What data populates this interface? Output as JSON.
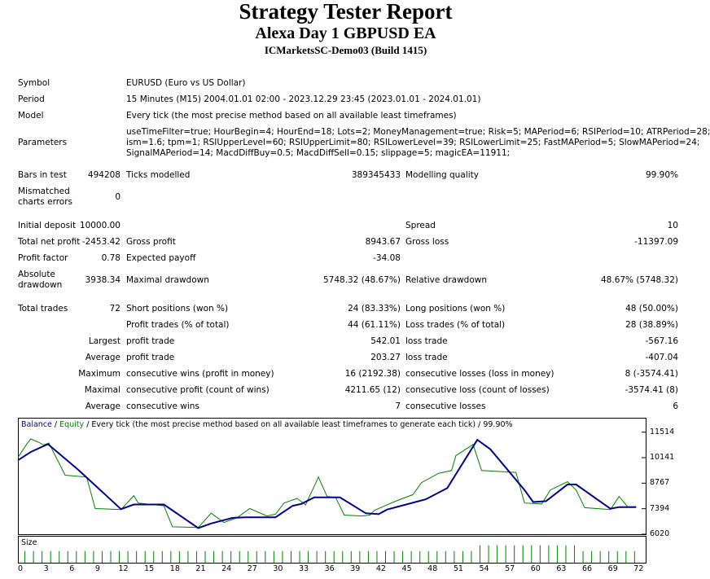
{
  "header": {
    "title": "Strategy Tester Report",
    "subtitle": "Alexa Day 1 GBPUSD EA",
    "server": "ICMarketsSC-Demo03 (Build 1415)"
  },
  "info": {
    "symbol_label": "Symbol",
    "symbol_value": "EURUSD (Euro vs US Dollar)",
    "period_label": "Period",
    "period_value": "15 Minutes (M15) 2004.01.01 02:00 - 2023.12.29 23:45 (2023.01.01 - 2024.01.01)",
    "model_label": "Model",
    "model_value": "Every tick (the most precise method based on all available least timeframes)",
    "parameters_label": "Parameters",
    "parameters_lines": [
      "useTimeFilter=true; HourBegin=4; HourEnd=18; Lots=2; MoneyManagement=true; Risk=5; MAPeriod=6; RSIPeriod=10; ATRPeriod=28;",
      "ism=1.6; tpm=1; RSIUpperLevel=60; RSIUpperLimit=80; RSILowerLevel=39; RSILowerLimit=25; FastMAPeriod=5; SlowMAPeriod=24;",
      "SignalMAPeriod=14; MacdDiffBuy=0.5; MacdDiffSell=0.15; slippage=5; magicEA=11911;"
    ]
  },
  "stats": {
    "bars_label": "Bars in test",
    "bars_value": "494208",
    "ticks_label": "Ticks modelled",
    "ticks_value": "389345433",
    "quality_label": "Modelling quality",
    "quality_value": "99.90%",
    "mismatch_label_1": "Mismatched",
    "mismatch_label_2": "charts errors",
    "mismatch_value": "0",
    "deposit_label": "Initial deposit",
    "deposit_value": "10000.00",
    "spread_label": "Spread",
    "spread_value": "10",
    "netprofit_label": "Total net profit",
    "netprofit_value": "-2453.42",
    "grossprofit_label": "Gross profit",
    "grossprofit_value": "8943.67",
    "grossloss_label": "Gross loss",
    "grossloss_value": "-11397.09",
    "pf_label": "Profit factor",
    "pf_value": "0.78",
    "payoff_label": "Expected payoff",
    "payoff_value": "-34.08",
    "absdd_label_1": "Absolute",
    "absdd_label_2": "drawdown",
    "absdd_value": "3938.34",
    "maxdd_label": "Maximal drawdown",
    "maxdd_value": "5748.32 (48.67%)",
    "reldd_label": "Relative drawdown",
    "reldd_value": "48.67% (5748.32)",
    "trades_label": "Total trades",
    "trades_value": "72",
    "short_label": "Short positions (won %)",
    "short_value": "24 (83.33%)",
    "long_label": "Long positions (won %)",
    "long_value": "48 (50.00%)",
    "profittrades_label": "Profit trades (% of total)",
    "profittrades_value": "44 (61.11%)",
    "losstrades_label": "Loss trades (% of total)",
    "losstrades_value": "28 (38.89%)",
    "largest_label": "Largest",
    "largest_profit_label": "profit trade",
    "largest_profit_value": "542.01",
    "largest_loss_label": "loss trade",
    "largest_loss_value": "-567.16",
    "average_label": "Average",
    "average_profit_label": "profit trade",
    "average_profit_value": "203.27",
    "average_loss_label": "loss trade",
    "average_loss_value": "-407.04",
    "maximum_label": "Maximum",
    "max_wins_label": "consecutive wins (profit in money)",
    "max_wins_value": "16 (2192.38)",
    "max_losses_label": "consecutive losses (loss in money)",
    "max_losses_value": "8 (-3574.41)",
    "maximal_label": "Maximal",
    "maximal_profit_label": "consecutive profit (count of wins)",
    "maximal_profit_value": "4211.65 (12)",
    "maximal_loss_label": "consecutive loss (count of losses)",
    "maximal_loss_value": "-3574.41 (8)",
    "average2_label": "Average",
    "avg_wins_label": "consecutive wins",
    "avg_wins_value": "7",
    "avg_losses_label": "consecutive losses",
    "avg_losses_value": "6"
  },
  "chart_data": {
    "type": "line",
    "legend_balance": "Balance",
    "legend_sep": " / ",
    "legend_equity": "Equity",
    "legend_rest": " / Every tick (the most precise method based on all available least timeframes to generate each tick) / 99.90%",
    "yticks": [
      11514,
      10141,
      8767,
      7394,
      6020
    ],
    "ylim": [
      6020,
      12290
    ],
    "xticks": [
      0,
      3,
      6,
      9,
      12,
      15,
      18,
      21,
      24,
      27,
      30,
      33,
      36,
      39,
      42,
      45,
      48,
      51,
      54,
      57,
      60,
      63,
      66,
      69,
      72
    ],
    "xlim": [
      0,
      73.2
    ],
    "colors": {
      "balance": "#00008b",
      "equity": "#008000",
      "size": "#008000"
    },
    "series": [
      {
        "name": "Balance",
        "points": [
          [
            0,
            10000
          ],
          [
            1.5,
            10450
          ],
          [
            3.5,
            10870
          ],
          [
            7,
            9500
          ],
          [
            12,
            7370
          ],
          [
            13.5,
            7620
          ],
          [
            17,
            7620
          ],
          [
            21,
            6350
          ],
          [
            22.5,
            6600
          ],
          [
            25,
            6900
          ],
          [
            26.5,
            6930
          ],
          [
            30,
            6930
          ],
          [
            32,
            7550
          ],
          [
            33,
            7650
          ],
          [
            34.5,
            8000
          ],
          [
            37.5,
            8000
          ],
          [
            40.5,
            7150
          ],
          [
            42,
            7100
          ],
          [
            43,
            7350
          ],
          [
            47.5,
            7900
          ],
          [
            50,
            8500
          ],
          [
            53.5,
            11100
          ],
          [
            55,
            10600
          ],
          [
            59,
            8400
          ],
          [
            60,
            7750
          ],
          [
            61.5,
            7800
          ],
          [
            64,
            8700
          ],
          [
            65,
            8700
          ],
          [
            69,
            7394
          ],
          [
            70,
            7480
          ],
          [
            72,
            7480
          ]
        ]
      },
      {
        "name": "Equity",
        "points": [
          [
            0,
            10150
          ],
          [
            1,
            10850
          ],
          [
            1.5,
            11150
          ],
          [
            2.5,
            10950
          ],
          [
            3,
            10820
          ],
          [
            3.6,
            10930
          ],
          [
            5.5,
            9200
          ],
          [
            8,
            9100
          ],
          [
            9,
            7400
          ],
          [
            12,
            7350
          ],
          [
            13.5,
            8100
          ],
          [
            14,
            7700
          ],
          [
            17,
            7550
          ],
          [
            18,
            6420
          ],
          [
            21,
            6380
          ],
          [
            22.5,
            7150
          ],
          [
            24,
            6650
          ],
          [
            25.5,
            6900
          ],
          [
            27,
            7400
          ],
          [
            29,
            7000
          ],
          [
            30,
            7100
          ],
          [
            31,
            7700
          ],
          [
            32.5,
            7950
          ],
          [
            33.5,
            7600
          ],
          [
            35,
            9100
          ],
          [
            36,
            8050
          ],
          [
            37,
            8000
          ],
          [
            38,
            7050
          ],
          [
            40,
            7000
          ],
          [
            41,
            7050
          ],
          [
            41.5,
            7300
          ],
          [
            42.5,
            7500
          ],
          [
            44,
            7800
          ],
          [
            46,
            8150
          ],
          [
            47,
            8800
          ],
          [
            49,
            9300
          ],
          [
            50.5,
            9450
          ],
          [
            51,
            10250
          ],
          [
            53,
            10850
          ],
          [
            54,
            9450
          ],
          [
            58,
            9350
          ],
          [
            59,
            7700
          ],
          [
            61,
            7650
          ],
          [
            62,
            8400
          ],
          [
            64,
            8850
          ],
          [
            65,
            8400
          ],
          [
            66,
            7450
          ],
          [
            69,
            7350
          ],
          [
            70,
            8050
          ],
          [
            71,
            7500
          ],
          [
            72,
            7500
          ]
        ]
      }
    ],
    "size_label": "Size",
    "size_values": [
      2,
      2,
      2,
      2,
      2,
      2,
      2,
      2,
      2,
      2,
      2,
      2,
      2,
      2,
      2,
      2,
      2,
      2,
      2,
      2,
      2,
      2,
      2,
      2,
      2,
      2,
      2,
      2,
      2,
      2,
      2,
      2,
      2,
      2,
      2,
      2,
      2,
      2,
      2,
      2,
      2,
      2,
      2,
      2,
      2,
      2,
      2,
      2,
      2,
      2,
      2,
      2,
      2,
      3,
      3,
      3,
      3,
      3,
      3,
      3,
      3,
      3,
      3,
      3,
      3,
      2,
      2,
      2,
      2,
      2,
      2,
      2
    ]
  }
}
